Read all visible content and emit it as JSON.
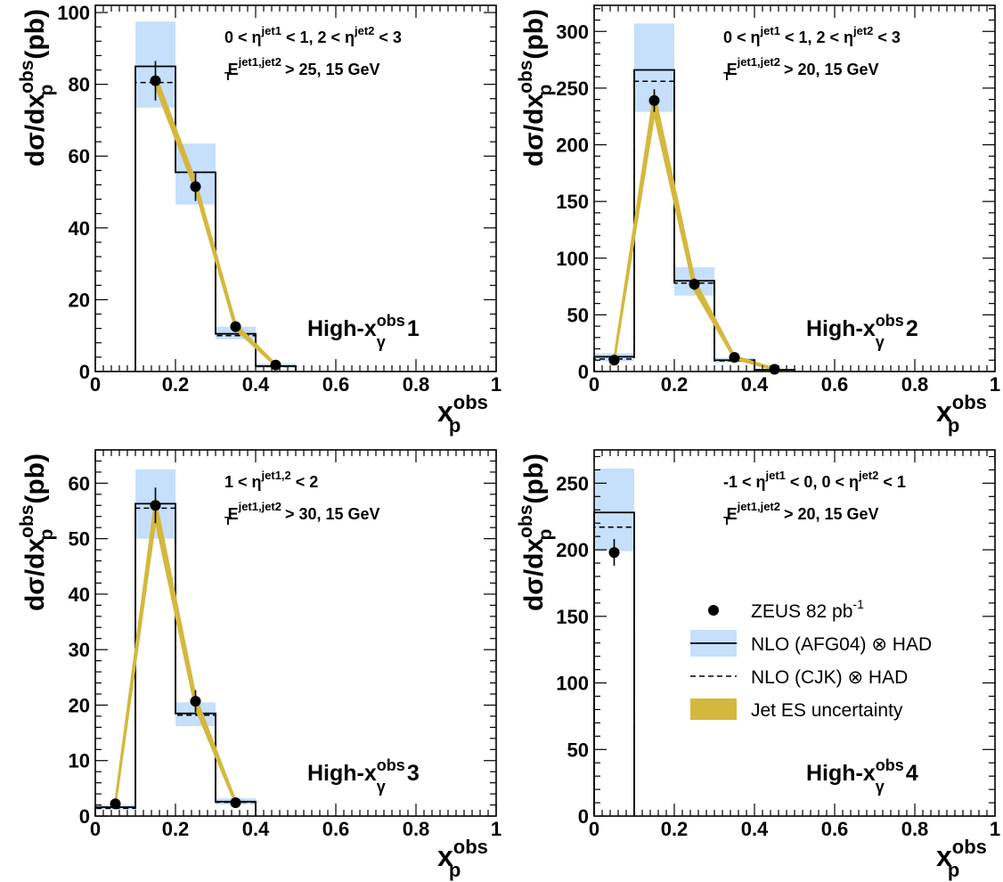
{
  "figure": {
    "legend": {
      "entries": [
        {
          "kind": "marker",
          "label": "ZEUS 82 pb",
          "sup": "-1"
        },
        {
          "kind": "solid-band",
          "label": "NLO (AFG04) ⊗ HAD"
        },
        {
          "kind": "dashed",
          "label": "NLO (CJK) ⊗ HAD"
        },
        {
          "kind": "es-band",
          "label": "Jet ES uncertainty"
        }
      ],
      "placement": "inside panel 4, middle-right"
    }
  },
  "colors": {
    "nlo_band": "#c6dffb",
    "es_band": "#d4b83e",
    "data": "#000000"
  },
  "chart_data": [
    {
      "type": "bar",
      "ylabel": {
        "base": "dσ/dx",
        "sub": "p",
        "sup": "obs",
        "unit": "(pb)"
      },
      "xlabel": {
        "base": "x",
        "sub": "p",
        "sup": "obs"
      },
      "xlim": [
        0,
        1
      ],
      "ylim": [
        0,
        102
      ],
      "x_ticks": [
        0,
        0.2,
        0.4,
        0.6,
        0.8,
        1
      ],
      "x_tick_labels": [
        "0",
        "0.2",
        "0.4",
        "0.6",
        "0.8",
        "1"
      ],
      "y_ticks": [
        0,
        20,
        40,
        60,
        80,
        100
      ],
      "y_tick_labels": [
        "0",
        "20",
        "40",
        "60",
        "80",
        "100"
      ],
      "annotations": [
        {
          "parts": [
            "0 < η",
            "jet1",
            " < 1, 2 < η",
            "jet2",
            " < 3"
          ]
        },
        {
          "parts": [
            "E",
            "jet1,jet2",
            "T",
            " > 25, 15 GeV"
          ]
        }
      ],
      "panel_label": {
        "pre": "High-x",
        "sup": "obs",
        "sub": "γ",
        "num": "1"
      },
      "bins": [
        [
          0.1,
          0.2
        ],
        [
          0.2,
          0.3
        ],
        [
          0.3,
          0.4
        ],
        [
          0.4,
          0.5
        ]
      ],
      "nlo_afg04": [
        85,
        55.5,
        10.5,
        1.5
      ],
      "nlo_cjk": [
        80.5,
        55.5,
        10.0,
        1.4
      ],
      "nlo_band_low": [
        73.5,
        46.5,
        9.0,
        1.0
      ],
      "nlo_band_high": [
        97.5,
        63.5,
        12.5,
        2.2
      ],
      "data_x": [
        0.15,
        0.25,
        0.35,
        0.45
      ],
      "data_y": [
        81,
        51.5,
        12.5,
        1.8
      ],
      "data_err": [
        5.5,
        4,
        1.5,
        0.5
      ],
      "es_low": [
        79.5,
        50.5,
        11.8,
        1.6
      ],
      "es_high": [
        82.5,
        53.0,
        13.2,
        2.0
      ]
    },
    {
      "type": "bar",
      "ylabel": {
        "base": "dσ/dx",
        "sub": "p",
        "sup": "obs",
        "unit": "(pb)"
      },
      "xlabel": {
        "base": "x",
        "sub": "p",
        "sup": "obs"
      },
      "xlim": [
        0,
        1
      ],
      "ylim": [
        0,
        323
      ],
      "x_ticks": [
        0,
        0.2,
        0.4,
        0.6,
        0.8,
        1
      ],
      "x_tick_labels": [
        "0",
        "0.2",
        "0.4",
        "0.6",
        "0.8",
        "1"
      ],
      "y_ticks": [
        0,
        50,
        100,
        150,
        200,
        250,
        300
      ],
      "y_tick_labels": [
        "0",
        "50",
        "100",
        "150",
        "200",
        "250",
        "300"
      ],
      "annotations": [
        {
          "parts": [
            "0 < η",
            "jet1",
            " < 1, 2 < η",
            "jet2",
            " < 3"
          ]
        },
        {
          "parts": [
            "E",
            "jet1,jet2",
            "T",
            " > 20, 15 GeV"
          ]
        }
      ],
      "panel_label": {
        "pre": "High-x",
        "sup": "obs",
        "sub": "γ",
        "num": "2"
      },
      "bins": [
        [
          0.0,
          0.1
        ],
        [
          0.1,
          0.2
        ],
        [
          0.2,
          0.3
        ],
        [
          0.3,
          0.4
        ],
        [
          0.4,
          0.5
        ]
      ],
      "nlo_afg04": [
        13,
        266,
        80,
        10,
        1.5
      ],
      "nlo_cjk": [
        11,
        256,
        78,
        9.5,
        1.4
      ],
      "nlo_band_low": [
        9,
        229,
        67,
        8,
        1
      ],
      "nlo_band_high": [
        16,
        307,
        92,
        12,
        2.5
      ],
      "data_x": [
        0.05,
        0.15,
        0.25,
        0.35,
        0.45
      ],
      "data_y": [
        10,
        239,
        77,
        12.5,
        2
      ],
      "data_err": [
        2,
        10,
        5,
        1.5,
        0.5
      ],
      "es_low": [
        9,
        228,
        72,
        11.5,
        1.5
      ],
      "es_high": [
        11,
        245,
        81,
        13.5,
        2.5
      ]
    },
    {
      "type": "bar",
      "ylabel": {
        "base": "dσ/dx",
        "sub": "p",
        "sup": "obs",
        "unit": "(pb)"
      },
      "xlabel": {
        "base": "x",
        "sub": "p",
        "sup": "obs"
      },
      "xlim": [
        0,
        1
      ],
      "ylim": [
        0,
        66
      ],
      "x_ticks": [
        0,
        0.2,
        0.4,
        0.6,
        0.8,
        1
      ],
      "x_tick_labels": [
        "0",
        "0.2",
        "0.4",
        "0.6",
        "0.8",
        "1"
      ],
      "y_ticks": [
        0,
        10,
        20,
        30,
        40,
        50,
        60
      ],
      "y_tick_labels": [
        "0",
        "10",
        "20",
        "30",
        "40",
        "50",
        "60"
      ],
      "annotations": [
        {
          "parts": [
            "1 < η",
            "jet1,2",
            " < 2",
            "",
            ""
          ]
        },
        {
          "parts": [
            "E",
            "jet1,jet2",
            "T",
            " > 30, 15 GeV"
          ]
        }
      ],
      "panel_label": {
        "pre": "High-x",
        "sup": "obs",
        "sub": "γ",
        "num": "3"
      },
      "bins": [
        [
          0.0,
          0.1
        ],
        [
          0.1,
          0.2
        ],
        [
          0.2,
          0.3
        ],
        [
          0.3,
          0.4
        ]
      ],
      "nlo_afg04": [
        1.6,
        56.3,
        18.5,
        2.6
      ],
      "nlo_cjk": [
        1.4,
        55.5,
        18.2,
        2.5
      ],
      "nlo_band_low": [
        1.2,
        50,
        16.2,
        2.1
      ],
      "nlo_band_high": [
        2.0,
        62.5,
        20.5,
        3.2
      ],
      "data_x": [
        0.05,
        0.15,
        0.25,
        0.35
      ],
      "data_y": [
        2.2,
        56,
        20.7,
        2.4
      ],
      "data_err": [
        0.8,
        3.2,
        2,
        0.3
      ],
      "es_low": [
        2.0,
        53.5,
        19.5,
        2.2
      ],
      "es_high": [
        2.5,
        57.0,
        21.5,
        2.7
      ]
    },
    {
      "type": "bar",
      "ylabel": {
        "base": "dσ/dx",
        "sub": "p",
        "sup": "obs",
        "unit": "(pb)"
      },
      "xlabel": {
        "base": "x",
        "sub": "p",
        "sup": "obs"
      },
      "xlim": [
        0,
        1
      ],
      "ylim": [
        0,
        275
      ],
      "x_ticks": [
        0,
        0.2,
        0.4,
        0.6,
        0.8,
        1
      ],
      "x_tick_labels": [
        "0",
        "0.2",
        "0.4",
        "0.6",
        "0.8",
        "1"
      ],
      "y_ticks": [
        0,
        50,
        100,
        150,
        200,
        250
      ],
      "y_tick_labels": [
        "0",
        "50",
        "100",
        "150",
        "200",
        "250"
      ],
      "annotations": [
        {
          "parts": [
            "-1 < η",
            "jet1",
            " < 0, 0 < η",
            "jet2",
            " < 1"
          ]
        },
        {
          "parts": [
            "E",
            "jet1,jet2",
            "T",
            " > 20, 15 GeV"
          ]
        }
      ],
      "panel_label": {
        "pre": "High-x",
        "sup": "obs",
        "sub": "γ",
        "num": "4"
      },
      "bins": [
        [
          0.0,
          0.1
        ]
      ],
      "nlo_afg04": [
        228
      ],
      "nlo_cjk": [
        217
      ],
      "nlo_band_low": [
        199
      ],
      "nlo_band_high": [
        261
      ],
      "data_x": [
        0.05
      ],
      "data_y": [
        198
      ],
      "data_err": [
        10
      ],
      "es_low": [
        195
      ],
      "es_high": [
        201
      ]
    }
  ]
}
